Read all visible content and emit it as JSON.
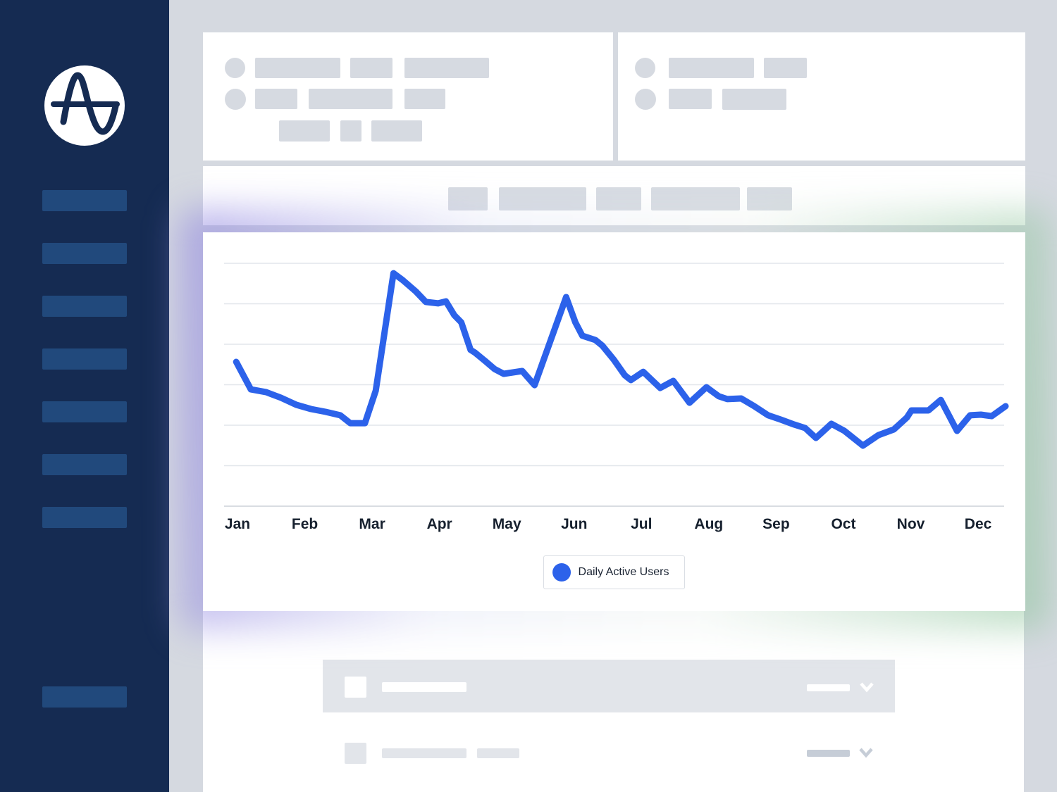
{
  "colors": {
    "accent_blue": "#2C62EA",
    "sidebar_navy": "#152B52",
    "sidebar_item_blue": "#21497C",
    "page_background": "#D5D9E0",
    "glow_purple": "#8F84E0",
    "glow_green": "#8AC398",
    "gridline": "#E2E6EB",
    "axis_line": "#D9DDE2",
    "label_text": "#16202E"
  },
  "sidebar": {
    "logo_icon": "amplitude-logo-icon"
  },
  "legend": {
    "label": "Daily Active Users"
  },
  "chart_data": {
    "type": "line",
    "title": "",
    "xlabel": "",
    "ylabel": "",
    "categories": [
      "Jan",
      "Feb",
      "Mar",
      "Apr",
      "May",
      "Jun",
      "Jul",
      "Aug",
      "Sep",
      "Oct",
      "Nov",
      "Dec"
    ],
    "x_unit": "fraction_of_year",
    "ylim": [
      0,
      135
    ],
    "gridline_values": [
      20,
      40,
      60,
      80,
      100,
      120
    ],
    "grid": "horizontal-only",
    "legend_position": "bottom-center",
    "series": [
      {
        "name": "Daily Active Users",
        "color": "#2C62EA",
        "points": [
          [
            0.002,
            71.3
          ],
          [
            0.021,
            57.7
          ],
          [
            0.041,
            56.3
          ],
          [
            0.06,
            53.6
          ],
          [
            0.08,
            50.1
          ],
          [
            0.099,
            48.0
          ],
          [
            0.118,
            46.6
          ],
          [
            0.137,
            44.9
          ],
          [
            0.15,
            41.0
          ],
          [
            0.169,
            41.0
          ],
          [
            0.183,
            57.0
          ],
          [
            0.206,
            115.1
          ],
          [
            0.218,
            111.7
          ],
          [
            0.235,
            106.1
          ],
          [
            0.248,
            100.9
          ],
          [
            0.264,
            100.2
          ],
          [
            0.274,
            101.2
          ],
          [
            0.285,
            94.3
          ],
          [
            0.294,
            90.8
          ],
          [
            0.306,
            77.2
          ],
          [
            0.312,
            75.8
          ],
          [
            0.325,
            71.7
          ],
          [
            0.337,
            67.8
          ],
          [
            0.349,
            65.4
          ],
          [
            0.361,
            66.1
          ],
          [
            0.373,
            66.8
          ],
          [
            0.389,
            59.8
          ],
          [
            0.43,
            103.3
          ],
          [
            0.442,
            90.8
          ],
          [
            0.451,
            84.2
          ],
          [
            0.468,
            82.1
          ],
          [
            0.477,
            79.3
          ],
          [
            0.492,
            72.3
          ],
          [
            0.506,
            64.7
          ],
          [
            0.514,
            62.3
          ],
          [
            0.53,
            66.4
          ],
          [
            0.552,
            58.4
          ],
          [
            0.569,
            61.9
          ],
          [
            0.59,
            51.1
          ],
          [
            0.612,
            58.8
          ],
          [
            0.628,
            54.3
          ],
          [
            0.639,
            52.9
          ],
          [
            0.657,
            53.2
          ],
          [
            0.674,
            49.4
          ],
          [
            0.692,
            44.9
          ],
          [
            0.708,
            42.8
          ],
          [
            0.726,
            40.3
          ],
          [
            0.74,
            38.6
          ],
          [
            0.754,
            33.7
          ],
          [
            0.774,
            40.7
          ],
          [
            0.791,
            37.2
          ],
          [
            0.815,
            29.9
          ],
          [
            0.835,
            35.1
          ],
          [
            0.855,
            37.9
          ],
          [
            0.872,
            43.8
          ],
          [
            0.878,
            47.3
          ],
          [
            0.9,
            47.3
          ],
          [
            0.916,
            52.5
          ],
          [
            0.937,
            37.2
          ],
          [
            0.954,
            44.9
          ],
          [
            0.968,
            45.2
          ],
          [
            0.982,
            44.5
          ],
          [
            1.0,
            49.4
          ]
        ]
      }
    ]
  }
}
